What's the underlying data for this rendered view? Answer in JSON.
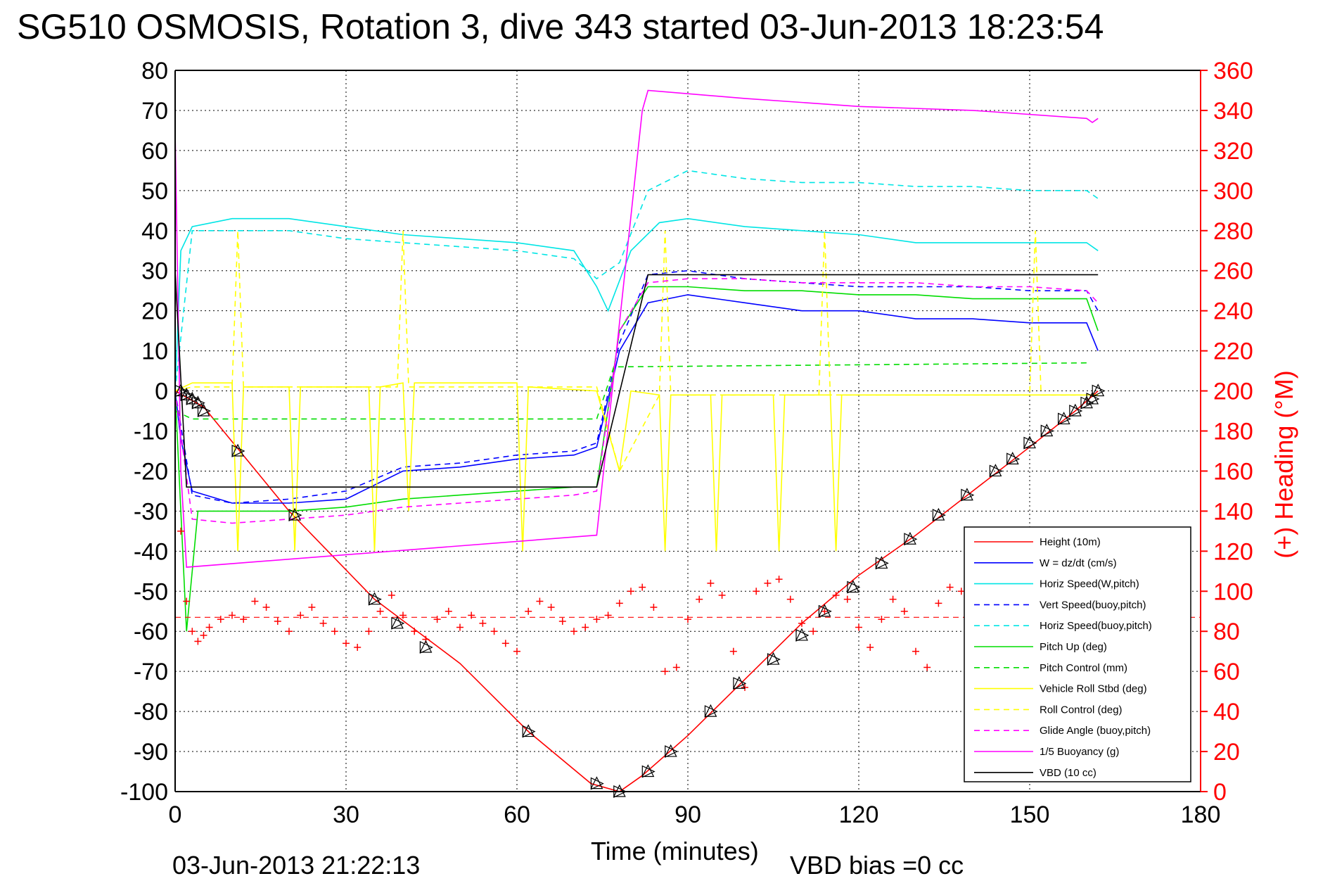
{
  "chart_data": {
    "type": "line",
    "title": "SG510 OSMOSIS, Rotation 3, dive 343 started 03-Jun-2013 18:23:54",
    "xlabel": "Time (minutes)",
    "ylabel": "",
    "y2label": "(+) Heading (°M)",
    "footer_date": "03-Jun-2013 21:22:13",
    "footer_bias": "VBD bias =0 cc",
    "xlim": [
      0,
      180
    ],
    "ylim": [
      -100,
      80
    ],
    "y2lim": [
      0,
      360
    ],
    "xticks": [
      "0",
      "30",
      "60",
      "90",
      "120",
      "150",
      "180"
    ],
    "yticks": [
      "80",
      "70",
      "60",
      "50",
      "40",
      "30",
      "20",
      "10",
      "0",
      "-10",
      "-20",
      "-30",
      "-40",
      "-50",
      "-60",
      "-70",
      "-80",
      "-90",
      "-100"
    ],
    "y2ticks": [
      "360",
      "340",
      "320",
      "300",
      "280",
      "260",
      "240",
      "220",
      "200",
      "180",
      "160",
      "140",
      "120",
      "100",
      "80",
      "60",
      "40",
      "20",
      "0"
    ],
    "grid": true,
    "legend_position": "bottom-right",
    "colors": {
      "height": "#ff0000",
      "w": "#0000ff",
      "horiz_w": "#00e5e5",
      "vert_buoy": "#0000ff",
      "horiz_buoy": "#00e5e5",
      "pitch_up": "#00dd00",
      "pitch_control": "#00dd00",
      "roll": "#ffff00",
      "roll_control": "#ffff00",
      "glide": "#ff00ff",
      "buoyancy": "#ff00ff",
      "vbd": "#000000",
      "heading": "#ff0000"
    },
    "series": [
      {
        "name": "Height (10m)",
        "style": "solid",
        "color": "#ff0000",
        "x": [
          0,
          5,
          20,
          35,
          50,
          62,
          73,
          78,
          82,
          90,
          100,
          110,
          120,
          130,
          140,
          150,
          158,
          162
        ],
        "y": [
          0,
          -4,
          -30,
          -52,
          -68,
          -85,
          -98,
          -100,
          -96,
          -86,
          -72,
          -58,
          -46,
          -36,
          -25,
          -14,
          -5,
          0
        ]
      },
      {
        "name": "W = dz/dt (cm/s)",
        "style": "solid",
        "color": "#0000ff",
        "x": [
          0,
          1,
          3,
          10,
          20,
          30,
          40,
          50,
          60,
          70,
          74,
          78,
          83,
          90,
          100,
          110,
          120,
          130,
          140,
          150,
          160,
          162
        ],
        "y": [
          0,
          -12,
          -25,
          -28,
          -28,
          -27,
          -20,
          -19,
          -17,
          -16,
          -14,
          10,
          22,
          24,
          22,
          20,
          20,
          18,
          18,
          17,
          17,
          10
        ]
      },
      {
        "name": "Horiz Speed(W,pitch)",
        "style": "solid",
        "color": "#00e5e5",
        "x": [
          0,
          1,
          3,
          10,
          20,
          30,
          40,
          50,
          60,
          70,
          74,
          76,
          80,
          85,
          90,
          100,
          110,
          120,
          130,
          140,
          150,
          160,
          162
        ],
        "y": [
          0,
          35,
          41,
          43,
          43,
          41,
          39,
          38,
          37,
          35,
          26,
          20,
          35,
          42,
          43,
          41,
          40,
          39,
          37,
          37,
          37,
          37,
          35
        ]
      },
      {
        "name": "Vert Speed(buoy,pitch)",
        "style": "dash",
        "color": "#0000ff",
        "x": [
          0,
          3,
          10,
          20,
          30,
          40,
          50,
          60,
          70,
          74,
          78,
          83,
          90,
          100,
          110,
          120,
          130,
          140,
          150,
          160,
          162
        ],
        "y": [
          0,
          -26,
          -28,
          -27,
          -25,
          -19,
          -18,
          -16,
          -15,
          -13,
          12,
          29,
          30,
          28,
          27,
          26,
          26,
          26,
          25,
          25,
          20
        ]
      },
      {
        "name": "Horiz Speed(buoy,pitch)",
        "style": "dash",
        "color": "#00e5e5",
        "x": [
          0,
          3,
          10,
          20,
          30,
          40,
          50,
          60,
          70,
          74,
          78,
          83,
          90,
          100,
          110,
          120,
          130,
          140,
          150,
          160,
          162
        ],
        "y": [
          0,
          40,
          40,
          40,
          38,
          37,
          36,
          35,
          33,
          28,
          32,
          50,
          55,
          53,
          52,
          52,
          51,
          51,
          50,
          50,
          48
        ]
      },
      {
        "name": "Pitch Up (deg)",
        "style": "solid",
        "color": "#00dd00",
        "x": [
          0,
          2,
          4,
          10,
          20,
          30,
          40,
          50,
          60,
          70,
          74,
          78,
          83,
          90,
          100,
          110,
          120,
          130,
          140,
          150,
          160,
          162
        ],
        "y": [
          0,
          -60,
          -30,
          -30,
          -30,
          -29,
          -27,
          -26,
          -25,
          -24,
          -24,
          15,
          26,
          26,
          25,
          25,
          24,
          24,
          23,
          23,
          23,
          15
        ]
      },
      {
        "name": "Pitch Control (mm)",
        "style": "dash",
        "color": "#00dd00",
        "x": [
          0,
          3,
          74,
          77,
          160
        ],
        "y": [
          -5,
          -7,
          -7,
          6,
          7
        ]
      },
      {
        "name": "Vehicle Roll Stbd (deg)",
        "style": "solid",
        "color": "#ffff00",
        "x": [
          0,
          3,
          5,
          10,
          11,
          12,
          20,
          21,
          22,
          34,
          35,
          36,
          40,
          41,
          42,
          60,
          61,
          62,
          74,
          78,
          80,
          85,
          86,
          87,
          90,
          94,
          95,
          96,
          100,
          105,
          106,
          107,
          110,
          115,
          116,
          117,
          120,
          130,
          140,
          150,
          160,
          162
        ],
        "y": [
          0,
          2,
          2,
          2,
          -40,
          1,
          1,
          -40,
          1,
          1,
          -40,
          1,
          2,
          -30,
          2,
          2,
          -40,
          1,
          0,
          -20,
          0,
          -1,
          -40,
          -1,
          -1,
          -1,
          -40,
          -1,
          -1,
          -1,
          -40,
          -1,
          -1,
          -1,
          -40,
          -1,
          -1,
          -1,
          -1,
          -1,
          -1,
          -1
        ]
      },
      {
        "name": "Roll Control (deg)",
        "style": "dash",
        "color": "#ffff00",
        "x": [
          0,
          3,
          10,
          11,
          12,
          39,
          40,
          41,
          74,
          78,
          85,
          86,
          87,
          113,
          114,
          115,
          150,
          151,
          152,
          162
        ],
        "y": [
          0,
          1,
          1,
          40,
          1,
          1,
          40,
          1,
          1,
          -20,
          -1,
          40,
          -1,
          -1,
          40,
          -1,
          -1,
          40,
          -1,
          -1
        ]
      },
      {
        "name": "Glide Angle (buoy,pitch)",
        "style": "dash",
        "color": "#ff00ff",
        "x": [
          0,
          3,
          10,
          20,
          30,
          40,
          50,
          60,
          70,
          74,
          78,
          83,
          90,
          100,
          110,
          120,
          130,
          140,
          150,
          160,
          162
        ],
        "y": [
          0,
          -32,
          -33,
          -32,
          -31,
          -29,
          -28,
          -27,
          -26,
          -25,
          15,
          27,
          28,
          28,
          27,
          27,
          27,
          26,
          26,
          25,
          22
        ]
      },
      {
        "name": "1/5 Buoyancy (g)",
        "style": "solid",
        "color": "#ff00ff",
        "x": [
          0,
          1,
          2,
          74,
          82,
          83,
          100,
          120,
          140,
          160,
          161,
          162
        ],
        "y": [
          65,
          -20,
          -44,
          -36,
          70,
          75,
          73,
          71,
          70,
          68,
          67,
          68
        ]
      },
      {
        "name": "VBD (10 cc)",
        "style": "solid",
        "color": "#000000",
        "x": [
          0,
          2,
          74,
          83,
          90,
          120,
          150,
          162
        ],
        "y": [
          30,
          -24,
          -24,
          29,
          29,
          29,
          29,
          29
        ]
      }
    ],
    "heading_points": {
      "name": "(+) Heading (°M)",
      "marker": "+",
      "color": "#ff0000",
      "x": [
        1,
        2,
        3,
        4,
        5,
        6,
        8,
        10,
        12,
        14,
        16,
        18,
        20,
        22,
        24,
        26,
        28,
        30,
        32,
        34,
        36,
        38,
        40,
        42,
        44,
        46,
        48,
        50,
        52,
        54,
        56,
        58,
        60,
        62,
        64,
        66,
        68,
        70,
        72,
        74,
        76,
        78,
        80,
        82,
        84,
        86,
        88,
        90,
        92,
        94,
        96,
        98,
        100,
        102,
        104,
        106,
        108,
        110,
        112,
        114,
        116,
        118,
        120,
        122,
        124,
        126,
        128,
        130,
        132,
        134,
        136,
        138,
        140
      ],
      "y": [
        130,
        95,
        80,
        75,
        78,
        82,
        86,
        88,
        86,
        95,
        92,
        85,
        80,
        88,
        92,
        84,
        80,
        74,
        72,
        80,
        90,
        98,
        88,
        80,
        76,
        86,
        90,
        82,
        88,
        84,
        80,
        74,
        70,
        90,
        95,
        92,
        85,
        80,
        82,
        86,
        88,
        94,
        100,
        102,
        92,
        60,
        62,
        86,
        96,
        104,
        98,
        70,
        52,
        100,
        104,
        106,
        96,
        84,
        80,
        90,
        98,
        96,
        82,
        72,
        86,
        96,
        90,
        70,
        62,
        94,
        102,
        100,
        100
      ]
    },
    "heading_mean_line": {
      "color": "#ff0000",
      "style": "dash",
      "y2": 87
    },
    "markers": {
      "type": "triangle",
      "color": "#000000",
      "x": [
        1,
        2,
        3,
        4,
        5,
        11,
        21,
        35,
        39,
        44,
        62,
        74,
        78,
        83,
        87,
        94,
        99,
        105,
        110,
        114,
        119,
        124,
        129,
        134,
        139,
        144,
        147,
        150,
        153,
        156,
        158,
        160,
        161,
        162
      ],
      "y": [
        0,
        -1,
        -2,
        -3,
        -5,
        -15,
        -31,
        -52,
        -58,
        -64,
        -85,
        -98,
        -100,
        -95,
        -90,
        -80,
        -73,
        -67,
        -61,
        -55,
        -49,
        -43,
        -37,
        -31,
        -26,
        -20,
        -17,
        -13,
        -10,
        -7,
        -5,
        -3,
        -2,
        0
      ]
    }
  }
}
